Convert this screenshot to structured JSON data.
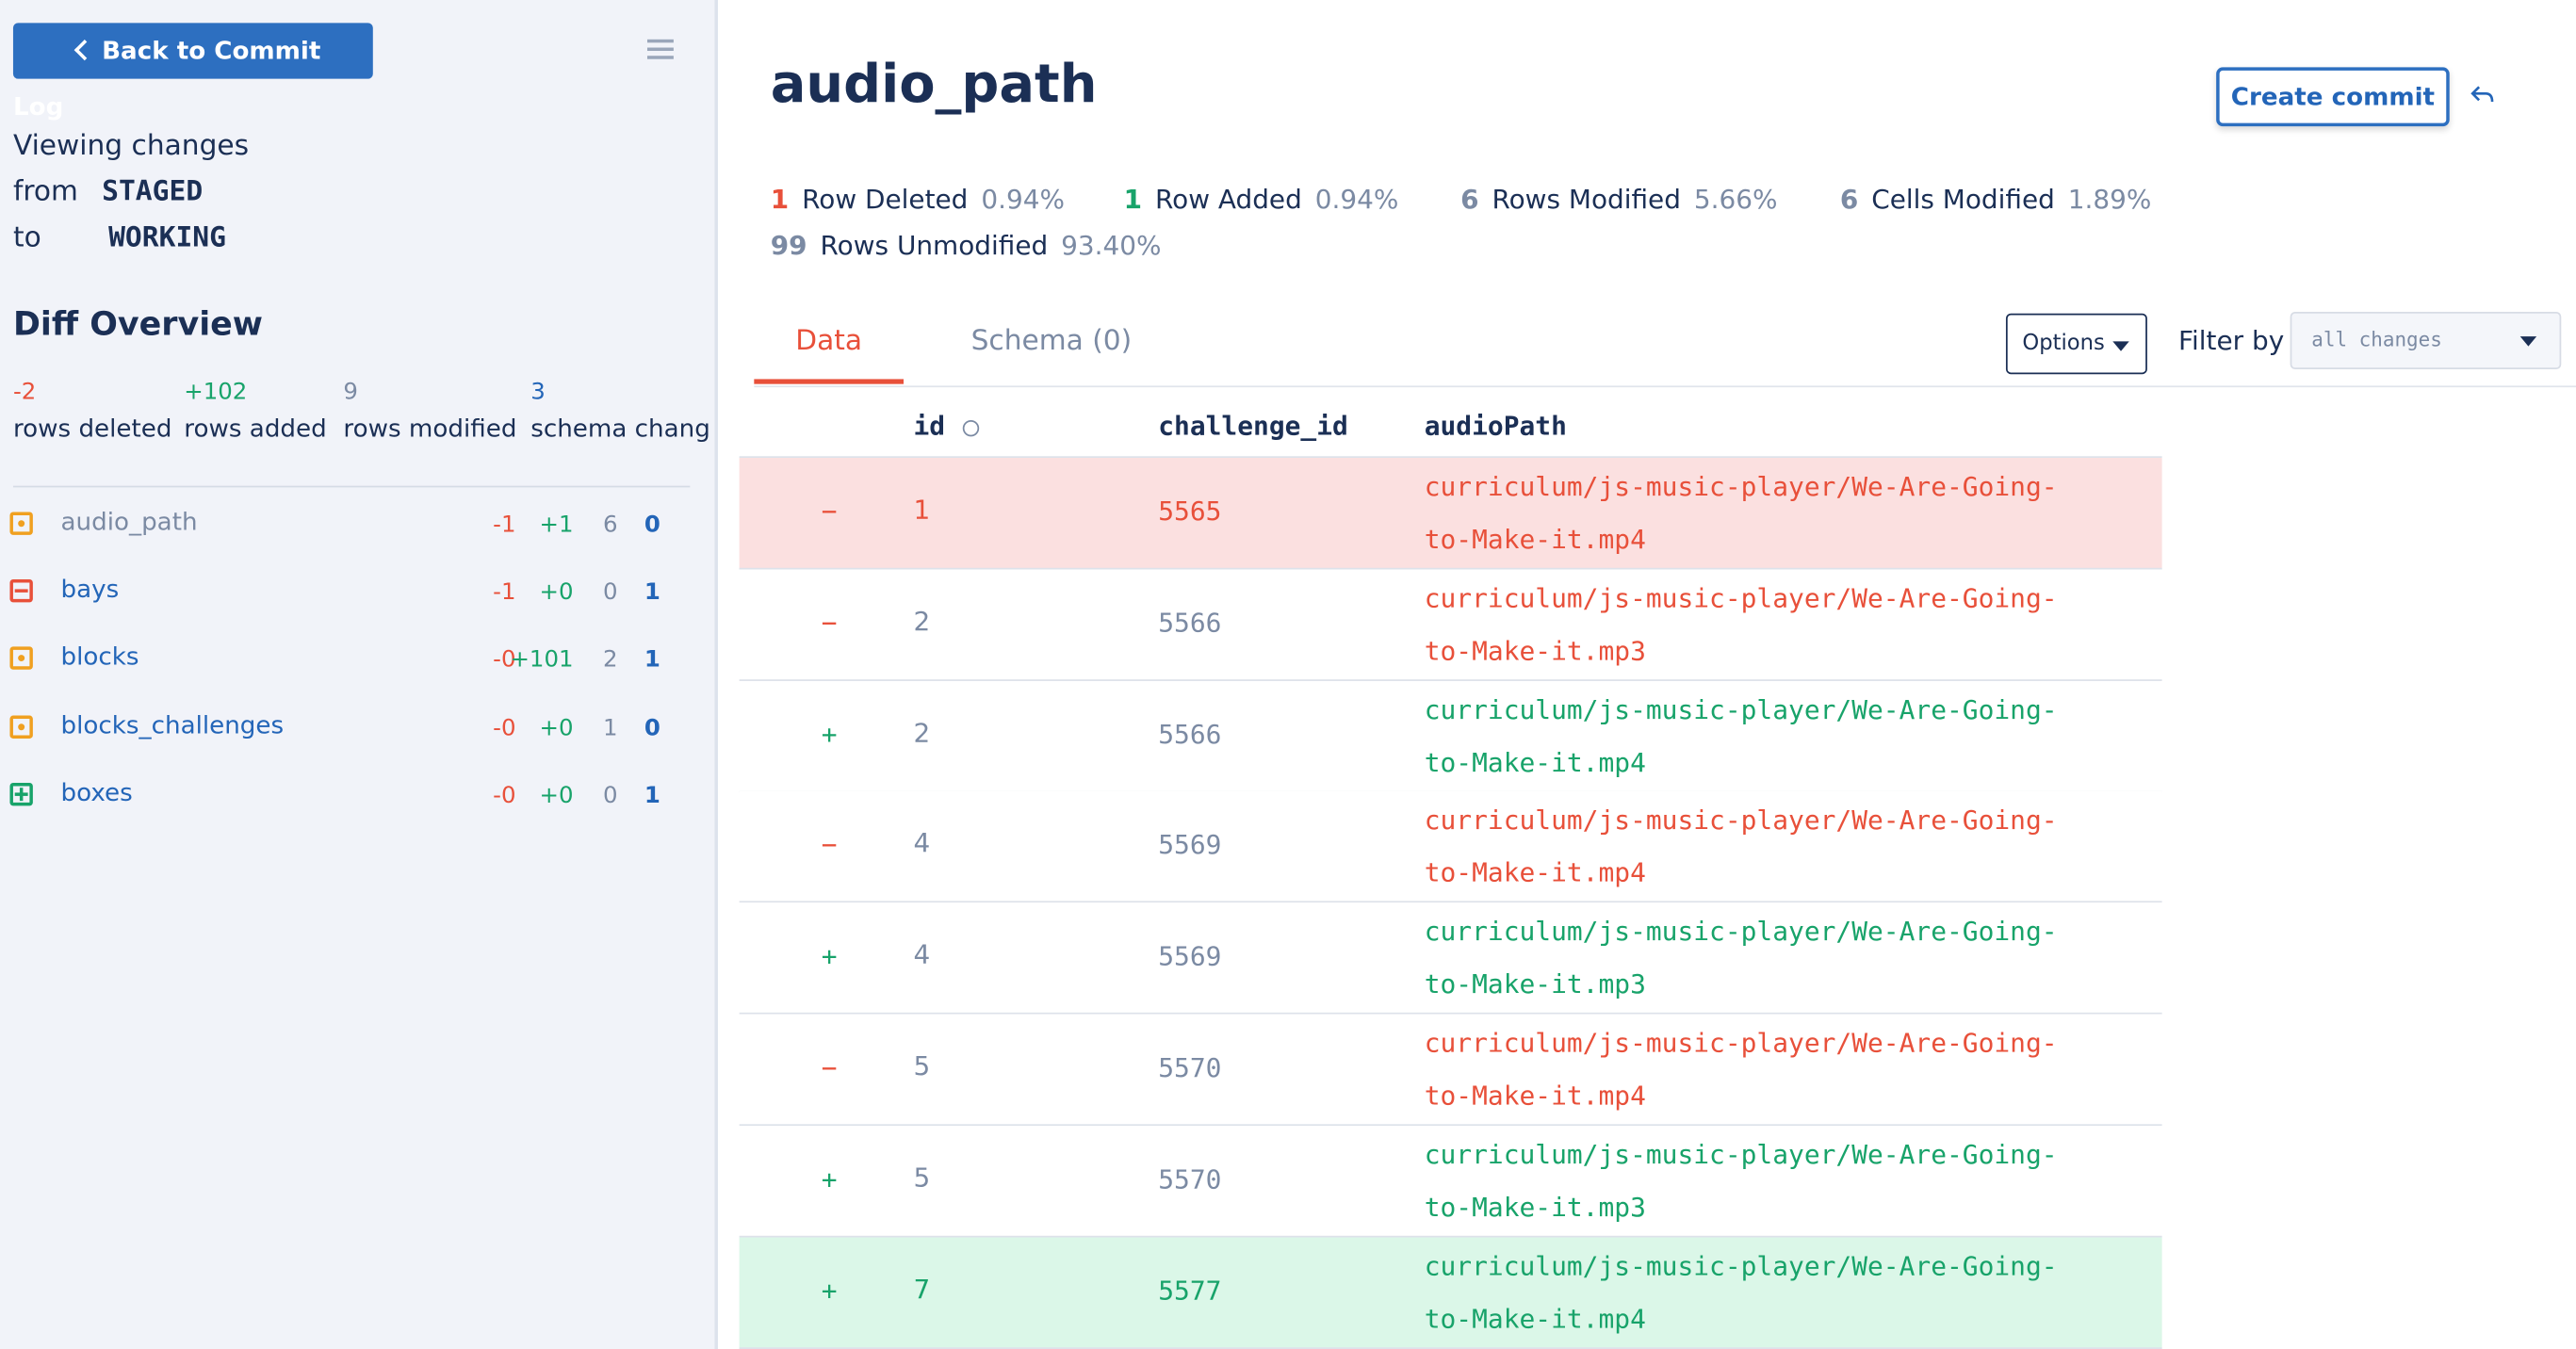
{
  "sidebar": {
    "back_button": "Back to Commit Log",
    "viewing": "Viewing changes",
    "from_label": "from",
    "from_value": "STAGED",
    "to_label": "to",
    "to_value": "WORKING",
    "overview_title": "Diff Overview",
    "summary": [
      {
        "value": "-2",
        "label": "rows deleted",
        "color": "#e8503a"
      },
      {
        "value": "+102",
        "label": "rows added",
        "color": "#18a36a"
      },
      {
        "value": "9",
        "label": "rows modified",
        "color": "#7b8aa3"
      },
      {
        "value": "3",
        "label": "schema chang",
        "color": "#2365b8"
      }
    ],
    "tables": [
      {
        "name": "audio_path",
        "status": "modified",
        "deleted": "-1",
        "added": "+1",
        "modified": "6",
        "schema": "0"
      },
      {
        "name": "bays",
        "status": "deleted",
        "deleted": "-1",
        "added": "+0",
        "modified": "0",
        "schema": "1"
      },
      {
        "name": "blocks",
        "status": "modified",
        "deleted": "-0",
        "added": "+101",
        "modified": "2",
        "schema": "1"
      },
      {
        "name": "blocks_challenges",
        "status": "modified",
        "deleted": "-0",
        "added": "+0",
        "modified": "1",
        "schema": "0"
      },
      {
        "name": "boxes",
        "status": "added",
        "deleted": "-0",
        "added": "+0",
        "modified": "0",
        "schema": "1"
      }
    ]
  },
  "main": {
    "title": "audio_path",
    "create_button": "Create commit",
    "stats": [
      {
        "count": "1",
        "label": "Row Deleted",
        "pct": "0.94%"
      },
      {
        "count": "1",
        "label": "Row Added",
        "pct": "0.94%"
      },
      {
        "count": "6",
        "label": "Rows Modified",
        "pct": "5.66%"
      },
      {
        "count": "6",
        "label": "Cells Modified",
        "pct": "1.89%"
      },
      {
        "count": "99",
        "label": "Rows Unmodified",
        "pct": "93.40%"
      }
    ],
    "tabs": [
      "Data",
      "Schema (0)"
    ],
    "options": "Options",
    "filter_label": "Filter by",
    "filter_value": "all changes",
    "columns": [
      "id",
      "challenge_id",
      "audioPath"
    ],
    "rows": [
      {
        "marker": "−",
        "id": "1",
        "challenge_id": "5565",
        "audioPath": "curriculum/js-music-player/We-Are-Going-to-Make-it.mp4",
        "highlight": "deleted"
      },
      {
        "marker": "−",
        "id": "2",
        "challenge_id": "5566",
        "audioPath": "curriculum/js-music-player/We-Are-Going-to-Make-it.mp3"
      },
      {
        "marker": "+",
        "id": "2",
        "challenge_id": "5566",
        "audioPath": "curriculum/js-music-player/We-Are-Going-to-Make-it.mp4"
      },
      {
        "marker": "−",
        "id": "4",
        "challenge_id": "5569",
        "audioPath": "curriculum/js-music-player/We-Are-Going-to-Make-it.mp4"
      },
      {
        "marker": "+",
        "id": "4",
        "challenge_id": "5569",
        "audioPath": "curriculum/js-music-player/We-Are-Going-to-Make-it.mp3"
      },
      {
        "marker": "−",
        "id": "5",
        "challenge_id": "5570",
        "audioPath": "curriculum/js-music-player/We-Are-Going-to-Make-it.mp4"
      },
      {
        "marker": "+",
        "id": "5",
        "challenge_id": "5570",
        "audioPath": "curriculum/js-music-player/We-Are-Going-to-Make-it.mp3"
      },
      {
        "marker": "+",
        "id": "7",
        "challenge_id": "5577",
        "audioPath": "curriculum/js-music-player/We-Are-Going-to-Make-it.mp4",
        "highlight": "added"
      }
    ]
  }
}
